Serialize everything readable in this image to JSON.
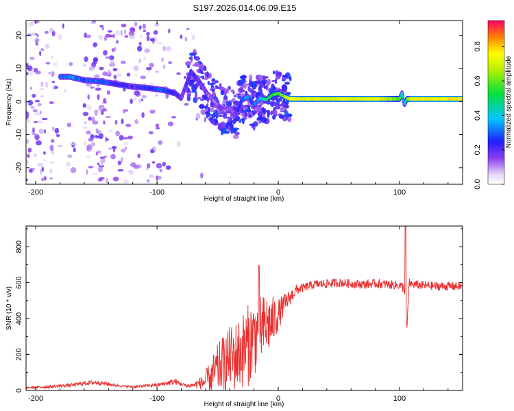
{
  "title": "S197.2026.014.06.09.E15",
  "chart_data": [
    {
      "type": "heatmap",
      "name": "spectrogram",
      "xlabel": "Height of straight line (km)",
      "ylabel": "Frequency (Hz)",
      "xlim": [
        -208,
        152
      ],
      "ylim": [
        -25,
        24.5
      ],
      "x_ticks": [
        -200,
        -100,
        0,
        100
      ],
      "y_ticks": [
        -20,
        -10,
        0,
        10,
        20
      ],
      "colorbar": {
        "label": "Normalized spectral amplitude",
        "range": [
          0,
          0.95
        ],
        "ticks": [
          0.0,
          0.2,
          0.4,
          0.6,
          0.8
        ]
      },
      "ridge": {
        "x": [
          -180,
          -172,
          -160,
          -145,
          -132,
          -120,
          -105,
          -95,
          -85,
          -80,
          -72,
          -65,
          -58,
          -50,
          -45,
          -40,
          -35,
          -30,
          -25,
          -20,
          -15,
          -10,
          -5,
          0,
          5,
          10,
          20,
          40,
          60,
          80,
          100,
          102,
          104,
          106,
          110,
          130,
          152
        ],
        "y": [
          7.5,
          7.5,
          6.5,
          6.0,
          5.2,
          4.5,
          4.0,
          3.5,
          2.5,
          1.0,
          9.0,
          6.0,
          2.0,
          -1.0,
          -3.0,
          -2.0,
          -4.0,
          0.5,
          1.5,
          -1.0,
          1.0,
          0.5,
          2.0,
          2.5,
          1.5,
          0.8,
          0.8,
          0.8,
          0.8,
          0.8,
          0.8,
          2.5,
          -1.0,
          0.8,
          0.8,
          0.8,
          0.8
        ],
        "amplitude": [
          0.3,
          0.35,
          0.3,
          0.3,
          0.25,
          0.2,
          0.3,
          0.3,
          0.25,
          0.2,
          0.25,
          0.2,
          0.15,
          0.15,
          0.15,
          0.15,
          0.2,
          0.3,
          0.35,
          0.3,
          0.4,
          0.5,
          0.55,
          0.6,
          0.65,
          0.8,
          0.75,
          0.75,
          0.75,
          0.8,
          0.6,
          0.4,
          0.4,
          0.6,
          0.8,
          0.8,
          0.8
        ]
      }
    },
    {
      "type": "line",
      "name": "snr",
      "xlabel": "Height of straight line (km)",
      "ylabel": "SNR (10 * v/v)",
      "xlim": [
        -208,
        152
      ],
      "ylim": [
        0,
        915
      ],
      "x_ticks": [
        -200,
        -100,
        0,
        100
      ],
      "y_ticks": [
        0,
        200,
        400,
        600,
        800
      ],
      "series": [
        {
          "name": "SNR",
          "color": "#e83030",
          "x": [
            -208,
            -190,
            -170,
            -160,
            -150,
            -140,
            -130,
            -120,
            -110,
            -100,
            -92,
            -85,
            -80,
            -75,
            -70,
            -65,
            -60,
            -55,
            -50,
            -45,
            -40,
            -35,
            -30,
            -25,
            -20,
            -15,
            -10,
            -5,
            0,
            5,
            10,
            15,
            20,
            25,
            30,
            40,
            50,
            60,
            70,
            80,
            90,
            100,
            104,
            106,
            108,
            110,
            120,
            130,
            140,
            152
          ],
          "y": [
            15,
            20,
            30,
            40,
            45,
            35,
            25,
            20,
            25,
            30,
            40,
            50,
            35,
            25,
            30,
            40,
            50,
            80,
            120,
            150,
            180,
            190,
            220,
            250,
            300,
            330,
            360,
            380,
            420,
            480,
            520,
            560,
            570,
            580,
            590,
            595,
            600,
            595,
            590,
            595,
            590,
            585,
            570,
            330,
            600,
            590,
            585,
            580,
            580,
            580
          ],
          "noise_amplitude": [
            5,
            8,
            10,
            12,
            14,
            10,
            6,
            6,
            8,
            10,
            14,
            18,
            12,
            10,
            15,
            30,
            60,
            100,
            140,
            160,
            180,
            200,
            210,
            230,
            220,
            200,
            180,
            150,
            90,
            60,
            40,
            30,
            25,
            25,
            25,
            25,
            25,
            25,
            25,
            25,
            25,
            25,
            30,
            30,
            25,
            25,
            25,
            25,
            25,
            25
          ],
          "peaks": [
            {
              "x": -16,
              "y": 695
            },
            {
              "x": 105,
              "y": 915
            }
          ]
        }
      ]
    }
  ]
}
